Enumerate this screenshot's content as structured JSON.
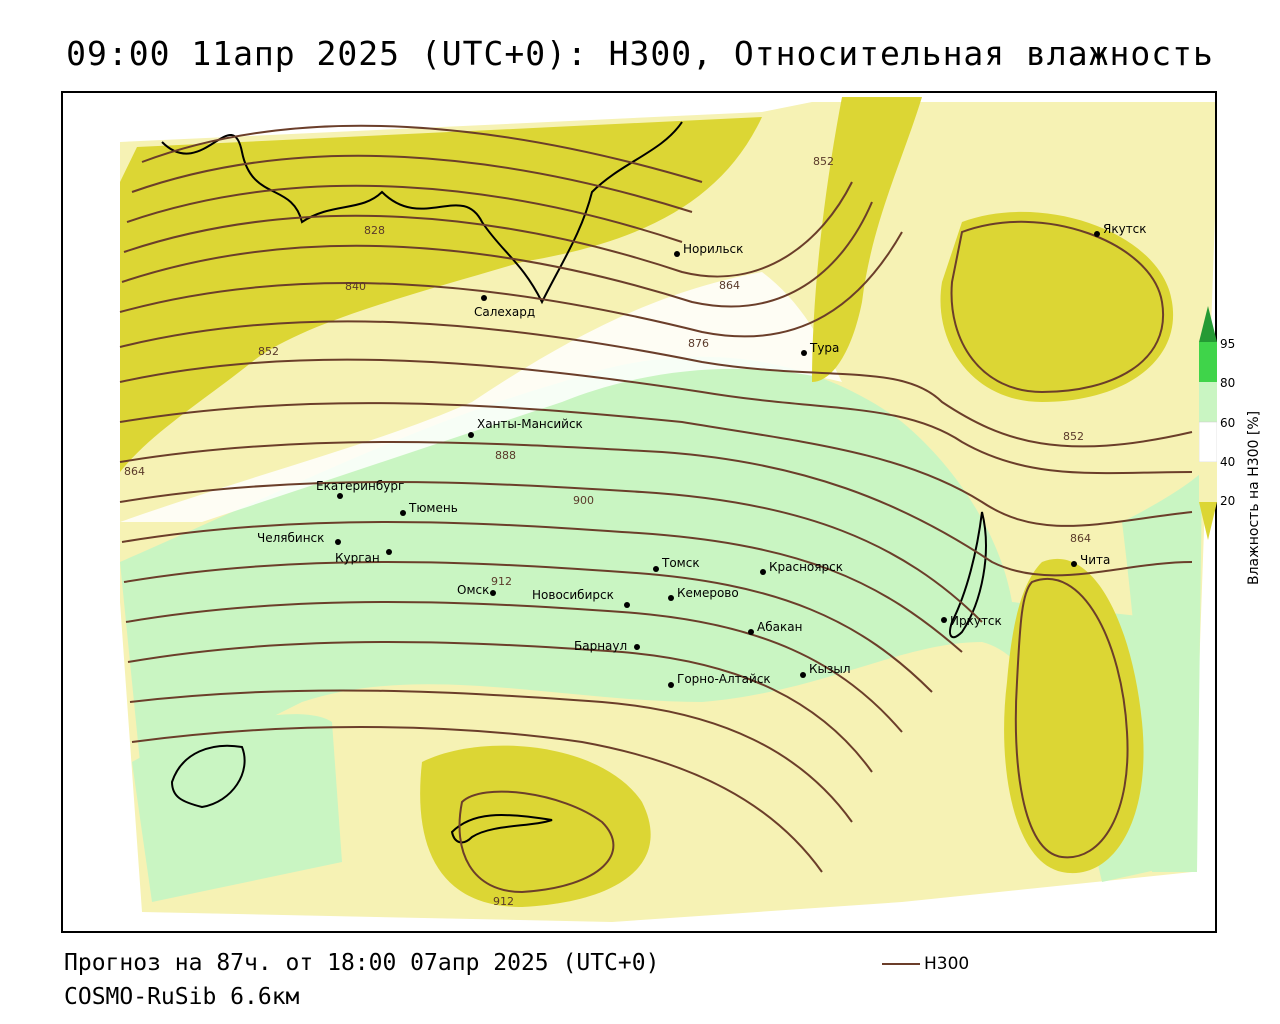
{
  "title": "09:00 11апр 2025 (UTC+0): H300, Относительная влажность",
  "footer": {
    "forecast": "Прогноз на 87ч. от 18:00 07апр 2025 (UTC+0)",
    "model": "COSMO-RuSib 6.6км"
  },
  "legend": {
    "line_label": "H300",
    "line_color": "#6b3e2a"
  },
  "colorbar": {
    "title": "Влажность на H300 [%]",
    "ticks": [
      "20",
      "40",
      "60",
      "80",
      "95"
    ],
    "colors": {
      "below20": "#dcd634",
      "20_40": "#f6f2b4",
      "40_60": "#ffffff",
      "60_80": "#c9f5c2",
      "80_95": "#3fd44a",
      "above95": "#249a34"
    }
  },
  "cities": [
    {
      "name": "Якутск"
    },
    {
      "name": "Норильск"
    },
    {
      "name": "Салехард"
    },
    {
      "name": "Тура"
    },
    {
      "name": "Ханты-Мансийск"
    },
    {
      "name": "Екатеринбург"
    },
    {
      "name": "Тюмень"
    },
    {
      "name": "Челябинск"
    },
    {
      "name": "Курган"
    },
    {
      "name": "Омск"
    },
    {
      "name": "Томск"
    },
    {
      "name": "Красноярск"
    },
    {
      "name": "Новосибирск"
    },
    {
      "name": "Кемерово"
    },
    {
      "name": "Абакан"
    },
    {
      "name": "Иркутск"
    },
    {
      "name": "Чита"
    },
    {
      "name": "Барнаул"
    },
    {
      "name": "Горно-Алтайск"
    },
    {
      "name": "Кызыл"
    }
  ],
  "contour_labels": [
    "828",
    "840",
    "852",
    "852",
    "852",
    "864",
    "864",
    "864",
    "876",
    "888",
    "900",
    "912",
    "912"
  ]
}
